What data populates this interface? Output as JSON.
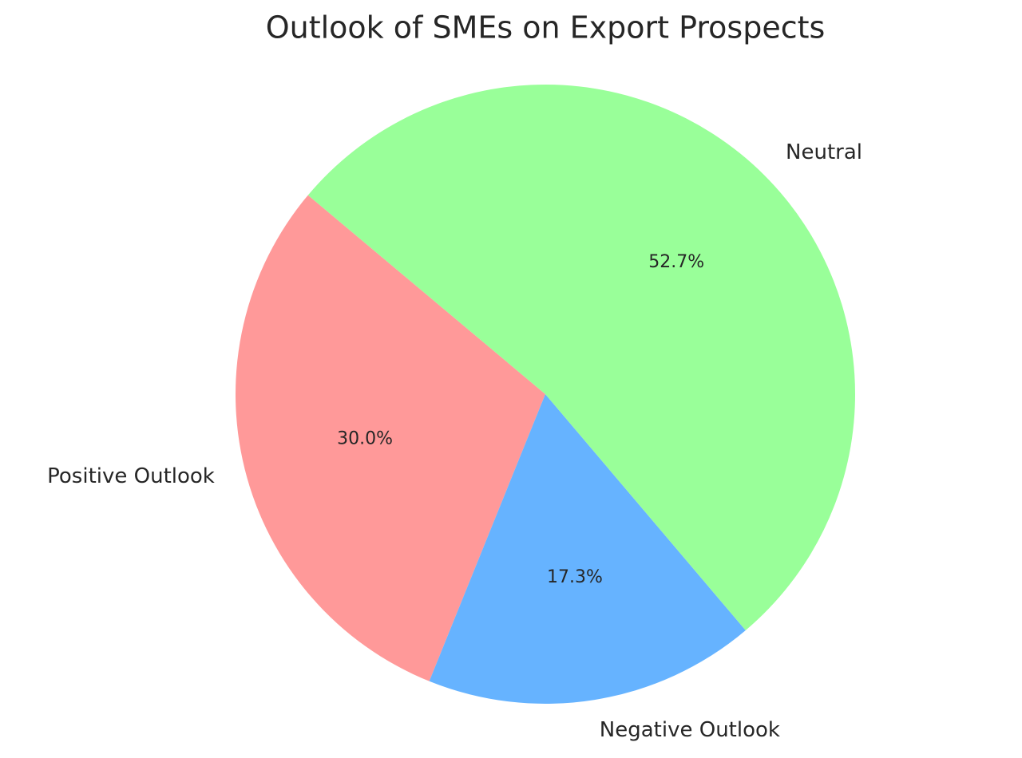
{
  "chart_data": {
    "type": "pie",
    "title": "Outlook of SMEs on Export Prospects",
    "categories": [
      "Positive Outlook",
      "Negative Outlook",
      "Neutral"
    ],
    "values": [
      30.0,
      17.3,
      52.7
    ],
    "value_labels": [
      "30.0%",
      "17.3%",
      "52.7%"
    ],
    "colors": [
      "#ff9999",
      "#66b3ff",
      "#99ff99"
    ]
  }
}
